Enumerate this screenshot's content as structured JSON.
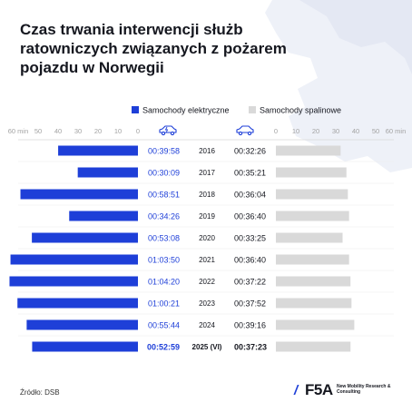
{
  "title": "Czas trwania interwencji służb ratowniczych związanych z pożarem pojazdu w Norwegii",
  "source": "Źródło: DSB",
  "brand": {
    "slash": "/",
    "logo": "F5A",
    "tagline": "New Mobility Research & Consulting"
  },
  "icons": {
    "left_series": "electric-car-icon",
    "right_series": "car-icon"
  },
  "colors": {
    "electric": "#1e3fd8",
    "combustion": "#d9d9d9",
    "text": "#15171f",
    "axis": "#a3a3a3",
    "map": "#eef1f8"
  },
  "chart_data": {
    "type": "bar",
    "categories": [
      "2016",
      "2017",
      "2018",
      "2019",
      "2020",
      "2021",
      "2022",
      "2023",
      "2024",
      "2025 (VI)"
    ],
    "series": [
      {
        "name": "Samochody elektryczne",
        "values": [
          "00:39:58",
          "00:30:09",
          "00:58:51",
          "00:34:26",
          "00:53:08",
          "01:03:50",
          "01:04:20",
          "01:00:21",
          "00:55:44",
          "00:52:59"
        ]
      },
      {
        "name": "Samochody spalinowe",
        "values": [
          "00:32:26",
          "00:35:21",
          "00:36:04",
          "00:36:40",
          "00:33:25",
          "00:36:40",
          "00:37:22",
          "00:37:52",
          "00:39:16",
          "00:37:23"
        ]
      }
    ],
    "x_ticks_left": [
      "60 min",
      "50",
      "40",
      "30",
      "20",
      "10",
      "0"
    ],
    "x_ticks_right": [
      "0",
      "10",
      "20",
      "30",
      "40",
      "50",
      "60 min"
    ],
    "xlim_minutes": [
      0,
      60
    ],
    "legend_position": "top-right"
  }
}
